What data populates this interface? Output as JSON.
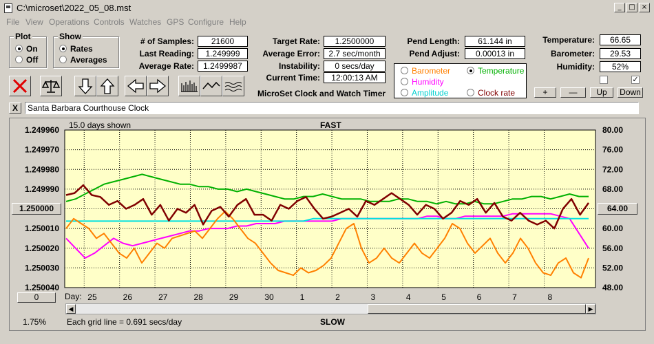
{
  "window": {
    "title": "C:\\microset\\2022_05_08.mst",
    "min": "_",
    "max": "□",
    "close": "×"
  },
  "menu": [
    "File",
    "View",
    "Operations",
    "Controls",
    "Watches",
    "GPS",
    "Configure",
    "Help"
  ],
  "plot_group": {
    "title": "Plot",
    "on": "On",
    "off": "Off",
    "selected": "On"
  },
  "show_group": {
    "title": "Show",
    "rates": "Rates",
    "averages": "Averages",
    "selected": "Rates"
  },
  "stats": {
    "samples_label": "# of Samples:",
    "samples": "21600",
    "last_label": "Last Reading:",
    "last": "1.249999",
    "avg_label": "Average Rate:",
    "avg": "1.2499987",
    "target_label": "Target Rate:",
    "target": "1.2500000",
    "err_label": "Average Error:",
    "err": "2.7 sec/month",
    "inst_label": "Instability:",
    "inst": "0 secs/day",
    "time_label": "Current Time:",
    "time": "12:00:13 AM",
    "pendlen_label": "Pend Length:",
    "pendlen": "61.144 in",
    "pendadj_label": "Pend Adjust:",
    "pendadj": "0.00013 in",
    "temp_label": "Temperature:",
    "temp": "66.65",
    "baro_label": "Barometer:",
    "baro": "29.53",
    "hum_label": "Humidity:",
    "hum": "52%"
  },
  "app_name": "MicroSet Clock and Watch Timer",
  "series_select": {
    "barometer": "Barometer",
    "temperature": "Temperature",
    "humidity": "Humidity",
    "amplitude": "Amplitude",
    "clockrate": "Clock rate",
    "selected": "Temperature"
  },
  "adjust_buttons": {
    "plus": "+",
    "minus": "—",
    "up": "Up",
    "down": "Down"
  },
  "checkbox_right_checked": "✓",
  "clock_name": "Santa Barbara Courthouse Clock",
  "clear_name_btn": "X",
  "chart_header": {
    "days_shown": "15.0 days shown",
    "fast": "FAST",
    "slow": "SLOW",
    "grid_note": "Each grid line = 0.691 secs/day",
    "day_label": "Day:",
    "percent": "1.75%",
    "left_marker": "1.250000",
    "right_marker": "64.00",
    "bottom_btn": "0"
  },
  "colors": {
    "plot_bg": "#ffffc8",
    "rate": "#800000",
    "temperature": "#00b000",
    "humidity": "#ff00ff",
    "barometer": "#ff8000",
    "amplitude": "#00e0e0"
  },
  "chart_data": {
    "type": "line",
    "x_tick_labels": [
      "25",
      "26",
      "27",
      "28",
      "29",
      "30",
      "1",
      "2",
      "3",
      "4",
      "5",
      "6",
      "7",
      "8"
    ],
    "left_axis": {
      "ticks": [
        "1.249960",
        "1.249970",
        "1.249980",
        "1.249990",
        "1.250000",
        "1.250010",
        "1.250020",
        "1.250030",
        "1.250040"
      ],
      "ylim": [
        1.25004,
        1.24996
      ]
    },
    "right_axis": {
      "ticks": [
        "80.00",
        "76.00",
        "72.00",
        "68.00",
        "64.00",
        "60.00",
        "56.00",
        "52.00",
        "48.00"
      ],
      "ylim": [
        48,
        80
      ]
    },
    "series": [
      {
        "name": "Temperature",
        "axis": "right",
        "color": "#00b000",
        "values": [
          65.5,
          66.0,
          67.0,
          68.0,
          69.0,
          69.5,
          70.0,
          70.5,
          71.0,
          70.5,
          70.0,
          69.5,
          69.0,
          69.0,
          68.5,
          68.5,
          68.0,
          68.0,
          67.5,
          68.0,
          67.5,
          67.0,
          66.5,
          66.0,
          66.0,
          66.5,
          66.5,
          67.0,
          66.5,
          66.0,
          66.0,
          66.0,
          65.5,
          65.5,
          65.5,
          66.0,
          66.0,
          65.5,
          65.5,
          65.0,
          65.5,
          65.0,
          65.0,
          65.5,
          65.0,
          65.0,
          65.5,
          66.0,
          66.0,
          66.5,
          66.5,
          66.0,
          66.5,
          67.0,
          66.5,
          66.5
        ]
      },
      {
        "name": "Humidity",
        "axis": "right",
        "color": "#ff00ff",
        "values": [
          58.0,
          56.0,
          54.0,
          55.0,
          56.5,
          58.0,
          57.0,
          56.5,
          57.0,
          57.5,
          58.0,
          58.5,
          59.0,
          59.5,
          59.5,
          60.0,
          60.0,
          60.0,
          60.5,
          60.5,
          61.0,
          61.0,
          61.0,
          61.5,
          61.5,
          61.5,
          61.5,
          61.5,
          61.5,
          62.0,
          62.0,
          62.0,
          62.0,
          62.0,
          62.0,
          62.0,
          62.0,
          62.0,
          62.5,
          62.5,
          62.0,
          62.0,
          62.5,
          62.5,
          62.5,
          62.5,
          62.5,
          63.0,
          63.0,
          63.0,
          63.0,
          63.0,
          62.5,
          62.0,
          59.0,
          56.0
        ]
      },
      {
        "name": "Amplitude",
        "axis": "right",
        "color": "#00e0e0",
        "values": [
          61.5,
          61.5,
          61.5,
          61.5,
          61.5,
          61.5,
          61.5,
          61.5,
          61.5,
          61.5,
          61.5,
          61.5,
          61.5,
          61.5,
          61.5,
          61.5,
          61.5,
          61.5,
          61.5,
          61.5,
          61.5,
          61.5,
          61.5,
          61.5,
          61.5,
          61.5,
          62.0,
          62.0,
          62.0,
          62.0,
          62.0,
          62.0,
          62.0,
          62.0,
          62.0,
          62.0,
          62.0,
          62.0,
          62.0,
          62.0,
          62.0,
          62.0,
          62.0,
          62.0,
          62.0,
          62.0,
          62.0,
          62.0,
          62.0,
          62.0,
          62.0,
          62.0,
          62.0,
          62.0,
          62.0,
          62.0
        ]
      },
      {
        "name": "Barometer",
        "axis": "right",
        "color": "#ff8000",
        "values": [
          60.0,
          62.0,
          61.0,
          60.0,
          58.0,
          59.0,
          57.0,
          55.0,
          54.0,
          56.0,
          53.0,
          55.0,
          57.0,
          56.0,
          58.0,
          58.5,
          59.0,
          59.5,
          58.0,
          60.0,
          62.0,
          63.5,
          62.0,
          60.0,
          58.0,
          57.0,
          55.0,
          53.0,
          51.5,
          51.0,
          50.5,
          52.0,
          51.0,
          51.5,
          52.5,
          54.0,
          57.0,
          60.0,
          61.0,
          56.0,
          53.0,
          54.0,
          56.0,
          54.0,
          53.0,
          55.0,
          57.0,
          55.0,
          54.0,
          56.0,
          58.0,
          61.0,
          60.0,
          57.0,
          55.0,
          56.5,
          58.0,
          55.0,
          53.0,
          55.0,
          58.0,
          56.0,
          53.0,
          51.0,
          50.5,
          53.0,
          54.0,
          51.0,
          50.0,
          54.0
        ]
      },
      {
        "name": "Clock rate",
        "axis": "left",
        "color": "#800000",
        "values": [
          1.249993,
          1.249992,
          1.249988,
          1.249993,
          1.249994,
          1.249998,
          1.249996,
          1.25,
          1.249998,
          1.249995,
          1.250003,
          1.249998,
          1.250006,
          1.25,
          1.250002,
          1.249998,
          1.250008,
          1.250001,
          1.249999,
          1.250004,
          1.249998,
          1.249995,
          1.250003,
          1.250003,
          1.250006,
          1.249998,
          1.25,
          1.249996,
          1.249994,
          1.25,
          1.250005,
          1.250004,
          1.250002,
          1.25,
          1.250004,
          1.249996,
          1.249998,
          1.249995,
          1.249992,
          1.249995,
          1.249998,
          1.250003,
          1.249998,
          1.25,
          1.250005,
          1.250002,
          1.249996,
          1.249998,
          1.249995,
          1.250002,
          1.249997,
          1.250004,
          1.250006,
          1.250002,
          1.250006,
          1.250008,
          1.250006,
          1.25001,
          1.25,
          1.249995,
          1.250003,
          1.249997
        ]
      }
    ]
  }
}
